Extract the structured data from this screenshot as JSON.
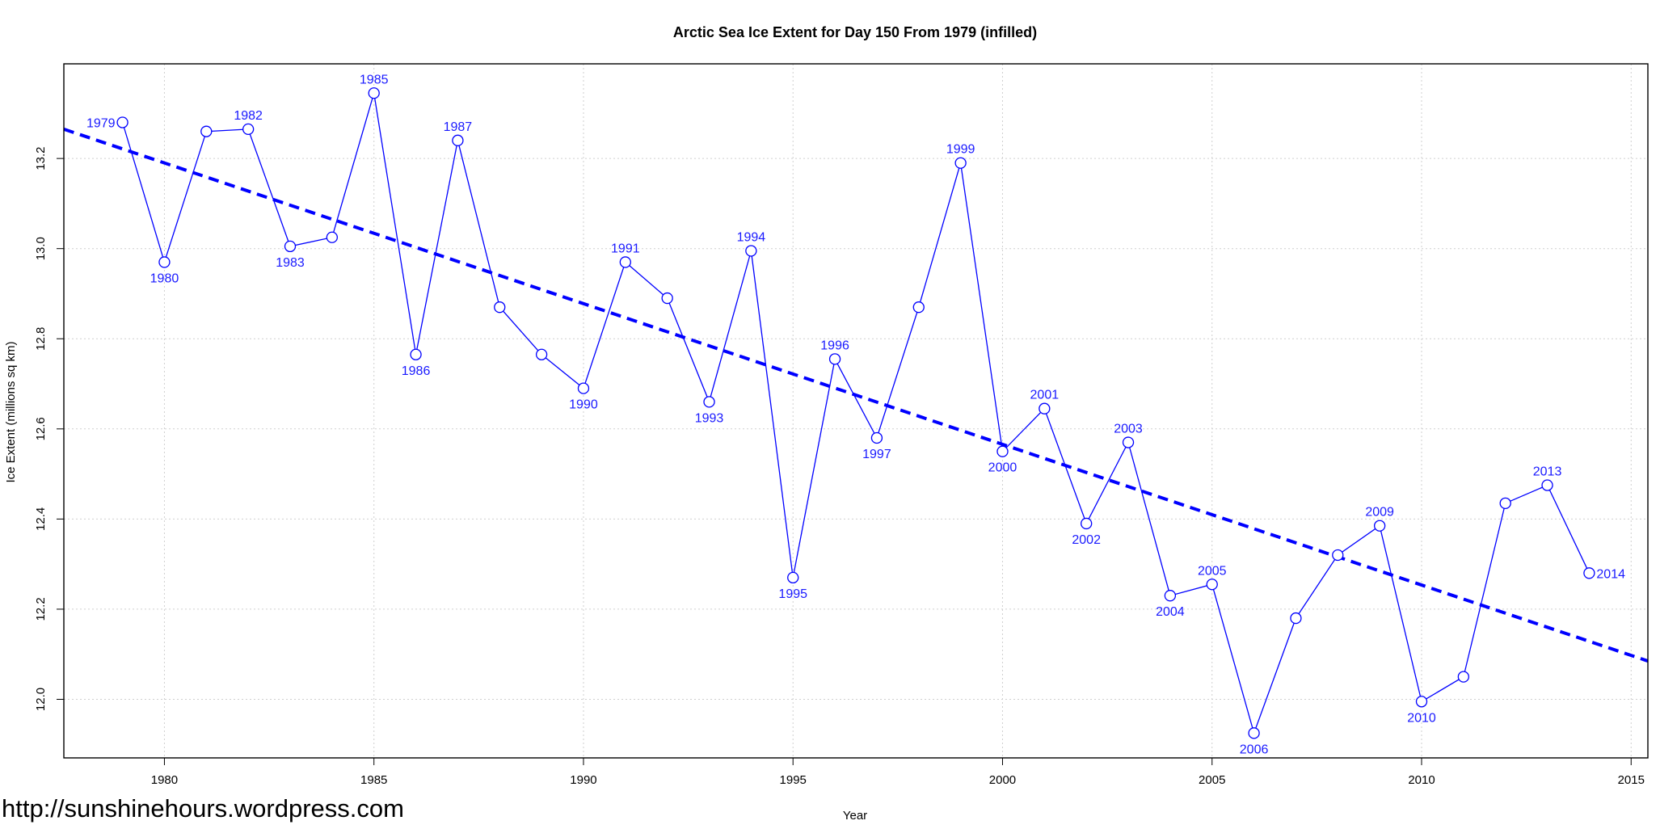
{
  "chart_data": {
    "type": "line",
    "title": "Arctic Sea Ice Extent for Day 150 From 1979 (infilled)",
    "xlabel": "Year",
    "ylabel": "Ice Extent (millions sq km)",
    "xlim": [
      1977.6,
      2015.4
    ],
    "ylim": [
      11.87,
      13.41
    ],
    "x_ticks": [
      1980,
      1985,
      1990,
      1995,
      2000,
      2005,
      2010,
      2015
    ],
    "y_ticks": [
      12.0,
      12.2,
      12.4,
      12.6,
      12.8,
      13.0,
      13.2
    ],
    "grid": true,
    "series": [
      {
        "type": "line+points",
        "color": "#0000ff",
        "x": [
          1979,
          1980,
          1981,
          1982,
          1983,
          1984,
          1985,
          1986,
          1987,
          1988,
          1989,
          1990,
          1991,
          1992,
          1993,
          1994,
          1995,
          1996,
          1997,
          1998,
          1999,
          2000,
          2001,
          2002,
          2003,
          2004,
          2005,
          2006,
          2007,
          2008,
          2009,
          2010,
          2011,
          2012,
          2013,
          2014
        ],
        "y": [
          13.28,
          12.97,
          13.26,
          13.265,
          13.005,
          13.025,
          13.345,
          12.765,
          13.24,
          12.87,
          12.765,
          12.69,
          12.97,
          12.89,
          12.66,
          12.995,
          12.27,
          12.755,
          12.58,
          12.87,
          13.19,
          12.55,
          12.645,
          12.39,
          12.57,
          12.23,
          12.255,
          11.925,
          12.18,
          12.32,
          12.385,
          11.995,
          12.05,
          12.435,
          12.475,
          12.28
        ]
      }
    ],
    "trend": {
      "type": "linear",
      "style": "dashed",
      "color": "#0000ff",
      "x": [
        1977.6,
        2015.4
      ],
      "y": [
        13.265,
        12.085
      ]
    },
    "point_labels": [
      {
        "year": 1979,
        "text": "1979",
        "pos": "left"
      },
      {
        "year": 1980,
        "text": "1980",
        "pos": "below"
      },
      {
        "year": 1982,
        "text": "1982",
        "pos": "above"
      },
      {
        "year": 1983,
        "text": "1983",
        "pos": "below"
      },
      {
        "year": 1985,
        "text": "1985",
        "pos": "above"
      },
      {
        "year": 1986,
        "text": "1986",
        "pos": "below"
      },
      {
        "year": 1987,
        "text": "1987",
        "pos": "above"
      },
      {
        "year": 1990,
        "text": "1990",
        "pos": "below"
      },
      {
        "year": 1991,
        "text": "1991",
        "pos": "above"
      },
      {
        "year": 1993,
        "text": "1993",
        "pos": "below"
      },
      {
        "year": 1994,
        "text": "1994",
        "pos": "above"
      },
      {
        "year": 1995,
        "text": "1995",
        "pos": "below"
      },
      {
        "year": 1996,
        "text": "1996",
        "pos": "above"
      },
      {
        "year": 1997,
        "text": "1997",
        "pos": "below"
      },
      {
        "year": 1999,
        "text": "1999",
        "pos": "above"
      },
      {
        "year": 2000,
        "text": "2000",
        "pos": "below"
      },
      {
        "year": 2001,
        "text": "2001",
        "pos": "above"
      },
      {
        "year": 2002,
        "text": "2002",
        "pos": "below"
      },
      {
        "year": 2003,
        "text": "2003",
        "pos": "above"
      },
      {
        "year": 2004,
        "text": "2004",
        "pos": "below"
      },
      {
        "year": 2005,
        "text": "2005",
        "pos": "above"
      },
      {
        "year": 2006,
        "text": "2006",
        "pos": "below"
      },
      {
        "year": 2009,
        "text": "2009",
        "pos": "above"
      },
      {
        "year": 2010,
        "text": "2010",
        "pos": "below"
      },
      {
        "year": 2013,
        "text": "2013",
        "pos": "above"
      },
      {
        "year": 2014,
        "text": "2014",
        "pos": "right"
      }
    ]
  },
  "watermark": "http://sunshinehours.wordpress.com"
}
